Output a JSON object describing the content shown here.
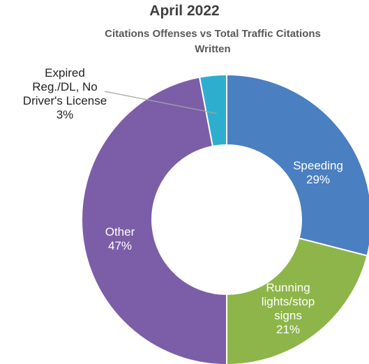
{
  "chart_data": {
    "type": "pie",
    "title": "April 2022",
    "subtitle": "Citations Offenses vs Total Traffic Citations Written",
    "donut": true,
    "slices": [
      {
        "key": "speeding",
        "label_lines": [
          "Speeding",
          "29%"
        ],
        "value": 29,
        "color": "#4a7fc1",
        "text_color": "#ffffff"
      },
      {
        "key": "running",
        "label_lines": [
          "Running",
          "lights/stop",
          "signs",
          "21%"
        ],
        "value": 21,
        "color": "#8db54a",
        "text_color": "#ffffff"
      },
      {
        "key": "other",
        "label_lines": [
          "Other",
          "47%"
        ],
        "value": 47,
        "color": "#7b5ea7",
        "text_color": "#ffffff"
      },
      {
        "key": "expired",
        "label_lines": [
          "Expired",
          "Reg./DL, No",
          "Driver's License",
          "3%"
        ],
        "value": 3,
        "color": "#2eaecf",
        "text_color": "#222222"
      }
    ]
  }
}
